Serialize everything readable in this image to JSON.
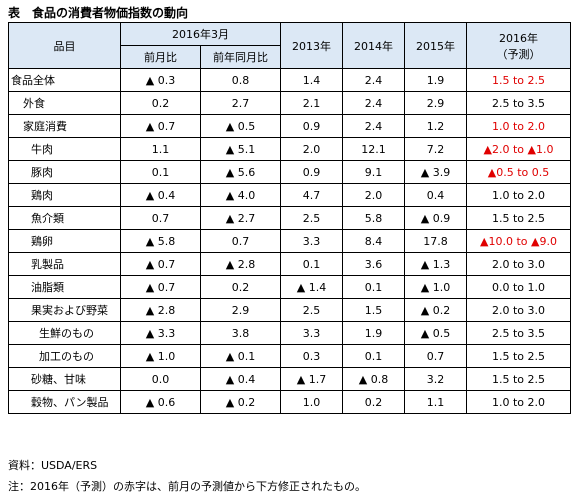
{
  "title": "表　食品の消費者物価指数の動向",
  "header": {
    "item": "品目",
    "group_2016_3": "2016年3月",
    "mom": "前月比",
    "yoy": "前年同月比",
    "y2013": "2013年",
    "y2014": "2014年",
    "y2015": "2015年",
    "y2016_line1": "2016年",
    "y2016_line2": "（予測）"
  },
  "rows": [
    {
      "name": "食品全体",
      "level": 0,
      "mom": "▲ 0.3",
      "yoy": "0.8",
      "y2013": "1.4",
      "y2014": "2.4",
      "y2015": "1.9",
      "f2016": "1.5 to 2.5",
      "f2016_red": true
    },
    {
      "name": "外食",
      "level": 1,
      "mom": "0.2",
      "yoy": "2.7",
      "y2013": "2.1",
      "y2014": "2.4",
      "y2015": "2.9",
      "f2016": "2.5 to 3.5",
      "f2016_red": false
    },
    {
      "name": "家庭消費",
      "level": 1,
      "mom": "▲ 0.7",
      "yoy": "▲ 0.5",
      "y2013": "0.9",
      "y2014": "2.4",
      "y2015": "1.2",
      "f2016": "1.0 to 2.0",
      "f2016_red": true
    },
    {
      "name": "牛肉",
      "level": 2,
      "mom": "1.1",
      "yoy": "▲ 5.1",
      "y2013": "2.0",
      "y2014": "12.1",
      "y2015": "7.2",
      "f2016": "▲2.0 to ▲1.0",
      "f2016_red": true
    },
    {
      "name": "豚肉",
      "level": 2,
      "mom": "0.1",
      "yoy": "▲ 5.6",
      "y2013": "0.9",
      "y2014": "9.1",
      "y2015": "▲ 3.9",
      "f2016": "▲0.5 to 0.5",
      "f2016_red": true
    },
    {
      "name": "鶏肉",
      "level": 2,
      "mom": "▲ 0.4",
      "yoy": "▲ 4.0",
      "y2013": "4.7",
      "y2014": "2.0",
      "y2015": "0.4",
      "f2016": "1.0 to 2.0",
      "f2016_red": false
    },
    {
      "name": "魚介類",
      "level": 2,
      "mom": "0.7",
      "yoy": "▲ 2.7",
      "y2013": "2.5",
      "y2014": "5.8",
      "y2015": "▲ 0.9",
      "f2016": "1.5 to 2.5",
      "f2016_red": false
    },
    {
      "name": "鶏卵",
      "level": 2,
      "mom": "▲ 5.8",
      "yoy": "0.7",
      "y2013": "3.3",
      "y2014": "8.4",
      "y2015": "17.8",
      "f2016": "▲10.0 to ▲9.0",
      "f2016_red": true
    },
    {
      "name": "乳製品",
      "level": 2,
      "mom": "▲ 0.7",
      "yoy": "▲ 2.8",
      "y2013": "0.1",
      "y2014": "3.6",
      "y2015": "▲ 1.3",
      "f2016": "2.0 to 3.0",
      "f2016_red": false
    },
    {
      "name": "油脂類",
      "level": 2,
      "mom": "▲ 0.7",
      "yoy": "0.2",
      "y2013": "▲ 1.4",
      "y2014": "0.1",
      "y2015": "▲ 1.0",
      "f2016": "0.0 to 1.0",
      "f2016_red": false
    },
    {
      "name": "果実および野菜",
      "level": 2,
      "mom": "▲ 2.8",
      "yoy": "2.9",
      "y2013": "2.5",
      "y2014": "1.5",
      "y2015": "▲ 0.2",
      "f2016": "2.0 to 3.0",
      "f2016_red": false
    },
    {
      "name": "生鮮のもの",
      "level": 3,
      "mom": "▲ 3.3",
      "yoy": "3.8",
      "y2013": "3.3",
      "y2014": "1.9",
      "y2015": "▲ 0.5",
      "f2016": "2.5 to 3.5",
      "f2016_red": false
    },
    {
      "name": "加工のもの",
      "level": 3,
      "mom": "▲ 1.0",
      "yoy": "▲ 0.1",
      "y2013": "0.3",
      "y2014": "0.1",
      "y2015": "0.7",
      "f2016": "1.5 to 2.5",
      "f2016_red": false
    },
    {
      "name": "砂糖、甘味",
      "level": 2,
      "mom": "0.0",
      "yoy": "▲ 0.4",
      "y2013": "▲ 1.7",
      "y2014": "▲ 0.8",
      "y2015": "3.2",
      "f2016": "1.5 to 2.5",
      "f2016_red": false
    },
    {
      "name": "穀物、パン製品",
      "level": 2,
      "mom": "▲ 0.6",
      "yoy": "▲ 0.2",
      "y2013": "1.0",
      "y2014": "0.2",
      "y2015": "1.1",
      "f2016": "1.0 to 2.0",
      "f2016_red": false
    }
  ],
  "source": "資料：USDA/ERS",
  "note": "注：2016年（予測）の赤字は、前月の予測値から下方修正されたもの。"
}
